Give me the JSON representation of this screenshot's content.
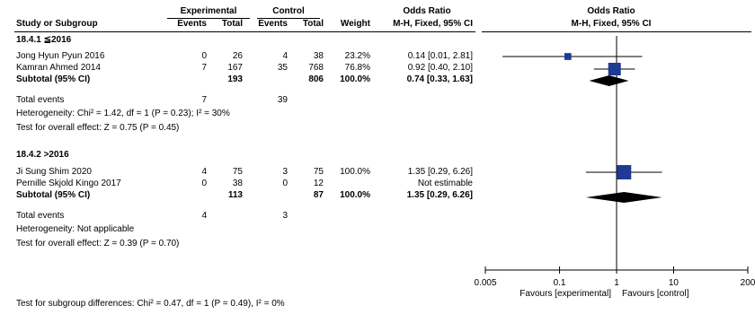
{
  "header": {
    "experimental": "Experimental",
    "control": "Control",
    "odds_ratio_left": "Odds Ratio",
    "odds_ratio_right": "Odds Ratio",
    "study_col": "Study or Subgroup",
    "events_exp": "Events",
    "total_exp": "Total",
    "events_ctl": "Events",
    "total_ctl": "Total",
    "weight": "Weight",
    "method_left": "M-H, Fixed, 95% CI",
    "method_right": "M-H, Fixed, 95% CI"
  },
  "groups": [
    {
      "label": "18.4.1 ≦2016",
      "studies": [
        {
          "name": "Jong Hyun Pyun 2016",
          "e_events": "0",
          "e_total": "26",
          "c_events": "4",
          "c_total": "38",
          "weight": "23.2%",
          "ci": "0.14 [0.01, 2.81]"
        },
        {
          "name": "Kamran Ahmed 2014",
          "e_events": "7",
          "e_total": "167",
          "c_events": "35",
          "c_total": "768",
          "weight": "76.8%",
          "ci": "0.92 [0.40, 2.10]"
        }
      ],
      "subtotal": {
        "label": "Subtotal (95% CI)",
        "e_total": "193",
        "c_total": "806",
        "weight": "100.0%",
        "ci": "0.74 [0.33, 1.63]"
      },
      "total_events": {
        "label": "Total events",
        "e_events": "7",
        "c_events": "39"
      },
      "heterogeneity": "Heterogeneity: Chi² = 1.42, df = 1 (P = 0.23); I² = 30%",
      "overall": "Test for overall effect: Z = 0.75 (P = 0.45)"
    },
    {
      "label": "18.4.2 >2016",
      "studies": [
        {
          "name": "Ji Sung Shim 2020",
          "e_events": "4",
          "e_total": "75",
          "c_events": "3",
          "c_total": "75",
          "weight": "100.0%",
          "ci": "1.35 [0.29, 6.26]"
        },
        {
          "name": "Pernille Skjold Kingo 2017",
          "e_events": "0",
          "e_total": "38",
          "c_events": "0",
          "c_total": "12",
          "weight": "",
          "ci": "Not estimable"
        }
      ],
      "subtotal": {
        "label": "Subtotal (95% CI)",
        "e_total": "113",
        "c_total": "87",
        "weight": "100.0%",
        "ci": "1.35 [0.29, 6.26]"
      },
      "total_events": {
        "label": "Total events",
        "e_events": "4",
        "c_events": "3"
      },
      "heterogeneity": "Heterogeneity: Not applicable",
      "overall": "Test for overall effect: Z = 0.39 (P = 0.70)"
    }
  ],
  "subgroup_test": "Test for subgroup differences: Chi² = 0.47, df = 1 (P = 0.49), I² = 0%",
  "axis": {
    "ticks": [
      "0.005",
      "0.1",
      "1",
      "10",
      "200"
    ],
    "favours_left": "Favours [experimental]",
    "favours_right": "Favours [control]"
  },
  "colors": {
    "square": "#1f3a93",
    "diamond": "#000000",
    "line": "#000000"
  },
  "chart_data": {
    "type": "forest",
    "scale": "log",
    "xlim": [
      0.005,
      200
    ],
    "tick_values": [
      0.005,
      0.1,
      1,
      10,
      200
    ],
    "null_line": 1,
    "studies": [
      {
        "name": "Jong Hyun Pyun 2016",
        "or": 0.14,
        "lower": 0.01,
        "upper": 2.81,
        "weight": 23.2
      },
      {
        "name": "Kamran Ahmed 2014",
        "or": 0.92,
        "lower": 0.4,
        "upper": 2.1,
        "weight": 76.8
      },
      {
        "name": "Ji Sung Shim 2020",
        "or": 1.35,
        "lower": 0.29,
        "upper": 6.26,
        "weight": 100.0
      }
    ],
    "subtotals": [
      {
        "label": "Subtotal (95% CI)",
        "or": 0.74,
        "lower": 0.33,
        "upper": 1.63
      },
      {
        "label": "Subtotal (95% CI)",
        "or": 1.35,
        "lower": 0.29,
        "upper": 6.26
      }
    ]
  }
}
